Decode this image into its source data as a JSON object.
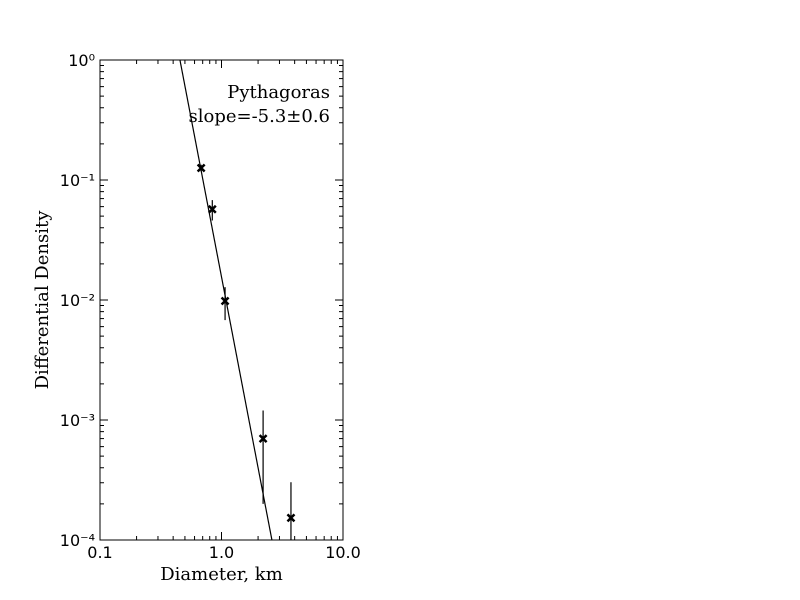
{
  "chart_data": {
    "type": "scatter",
    "x_label": "Diameter, km",
    "y_label": "Differential Density",
    "annotations": [
      "Pythagoras",
      "slope=-5.3±0.6"
    ],
    "x_log": true,
    "y_log": true,
    "xlim": [
      0.1,
      10
    ],
    "ylim": [
      0.0001,
      1
    ],
    "xticks": [
      0.1,
      {
        "value": 1,
        "label": "1.0"
      },
      {
        "value": 10,
        "label": "10.0"
      }
    ],
    "yticks": [
      {
        "value": 0.0001,
        "label": "10⁻⁴"
      },
      {
        "value": 0.001,
        "label": "10⁻³"
      },
      {
        "value": 0.01,
        "label": "10⁻²"
      },
      {
        "value": 0.1,
        "label": "10⁻¹"
      },
      {
        "value": 1,
        "label": "10⁰"
      }
    ],
    "series": [
      {
        "color": "#000000",
        "x": [
          0.68,
          0.84,
          1.07,
          2.2,
          3.73
        ],
        "values": [
          0.126,
          0.057,
          0.0098,
          0.0007,
          0.000153
        ],
        "errors": [
          0.008,
          0.011,
          0.003,
          0.0005,
          0.00015
        ]
      }
    ],
    "fit": {
      "color": "#000000",
      "x": [
        0.455,
        2.6
      ],
      "values": [
        1,
        0.0001
      ]
    }
  }
}
